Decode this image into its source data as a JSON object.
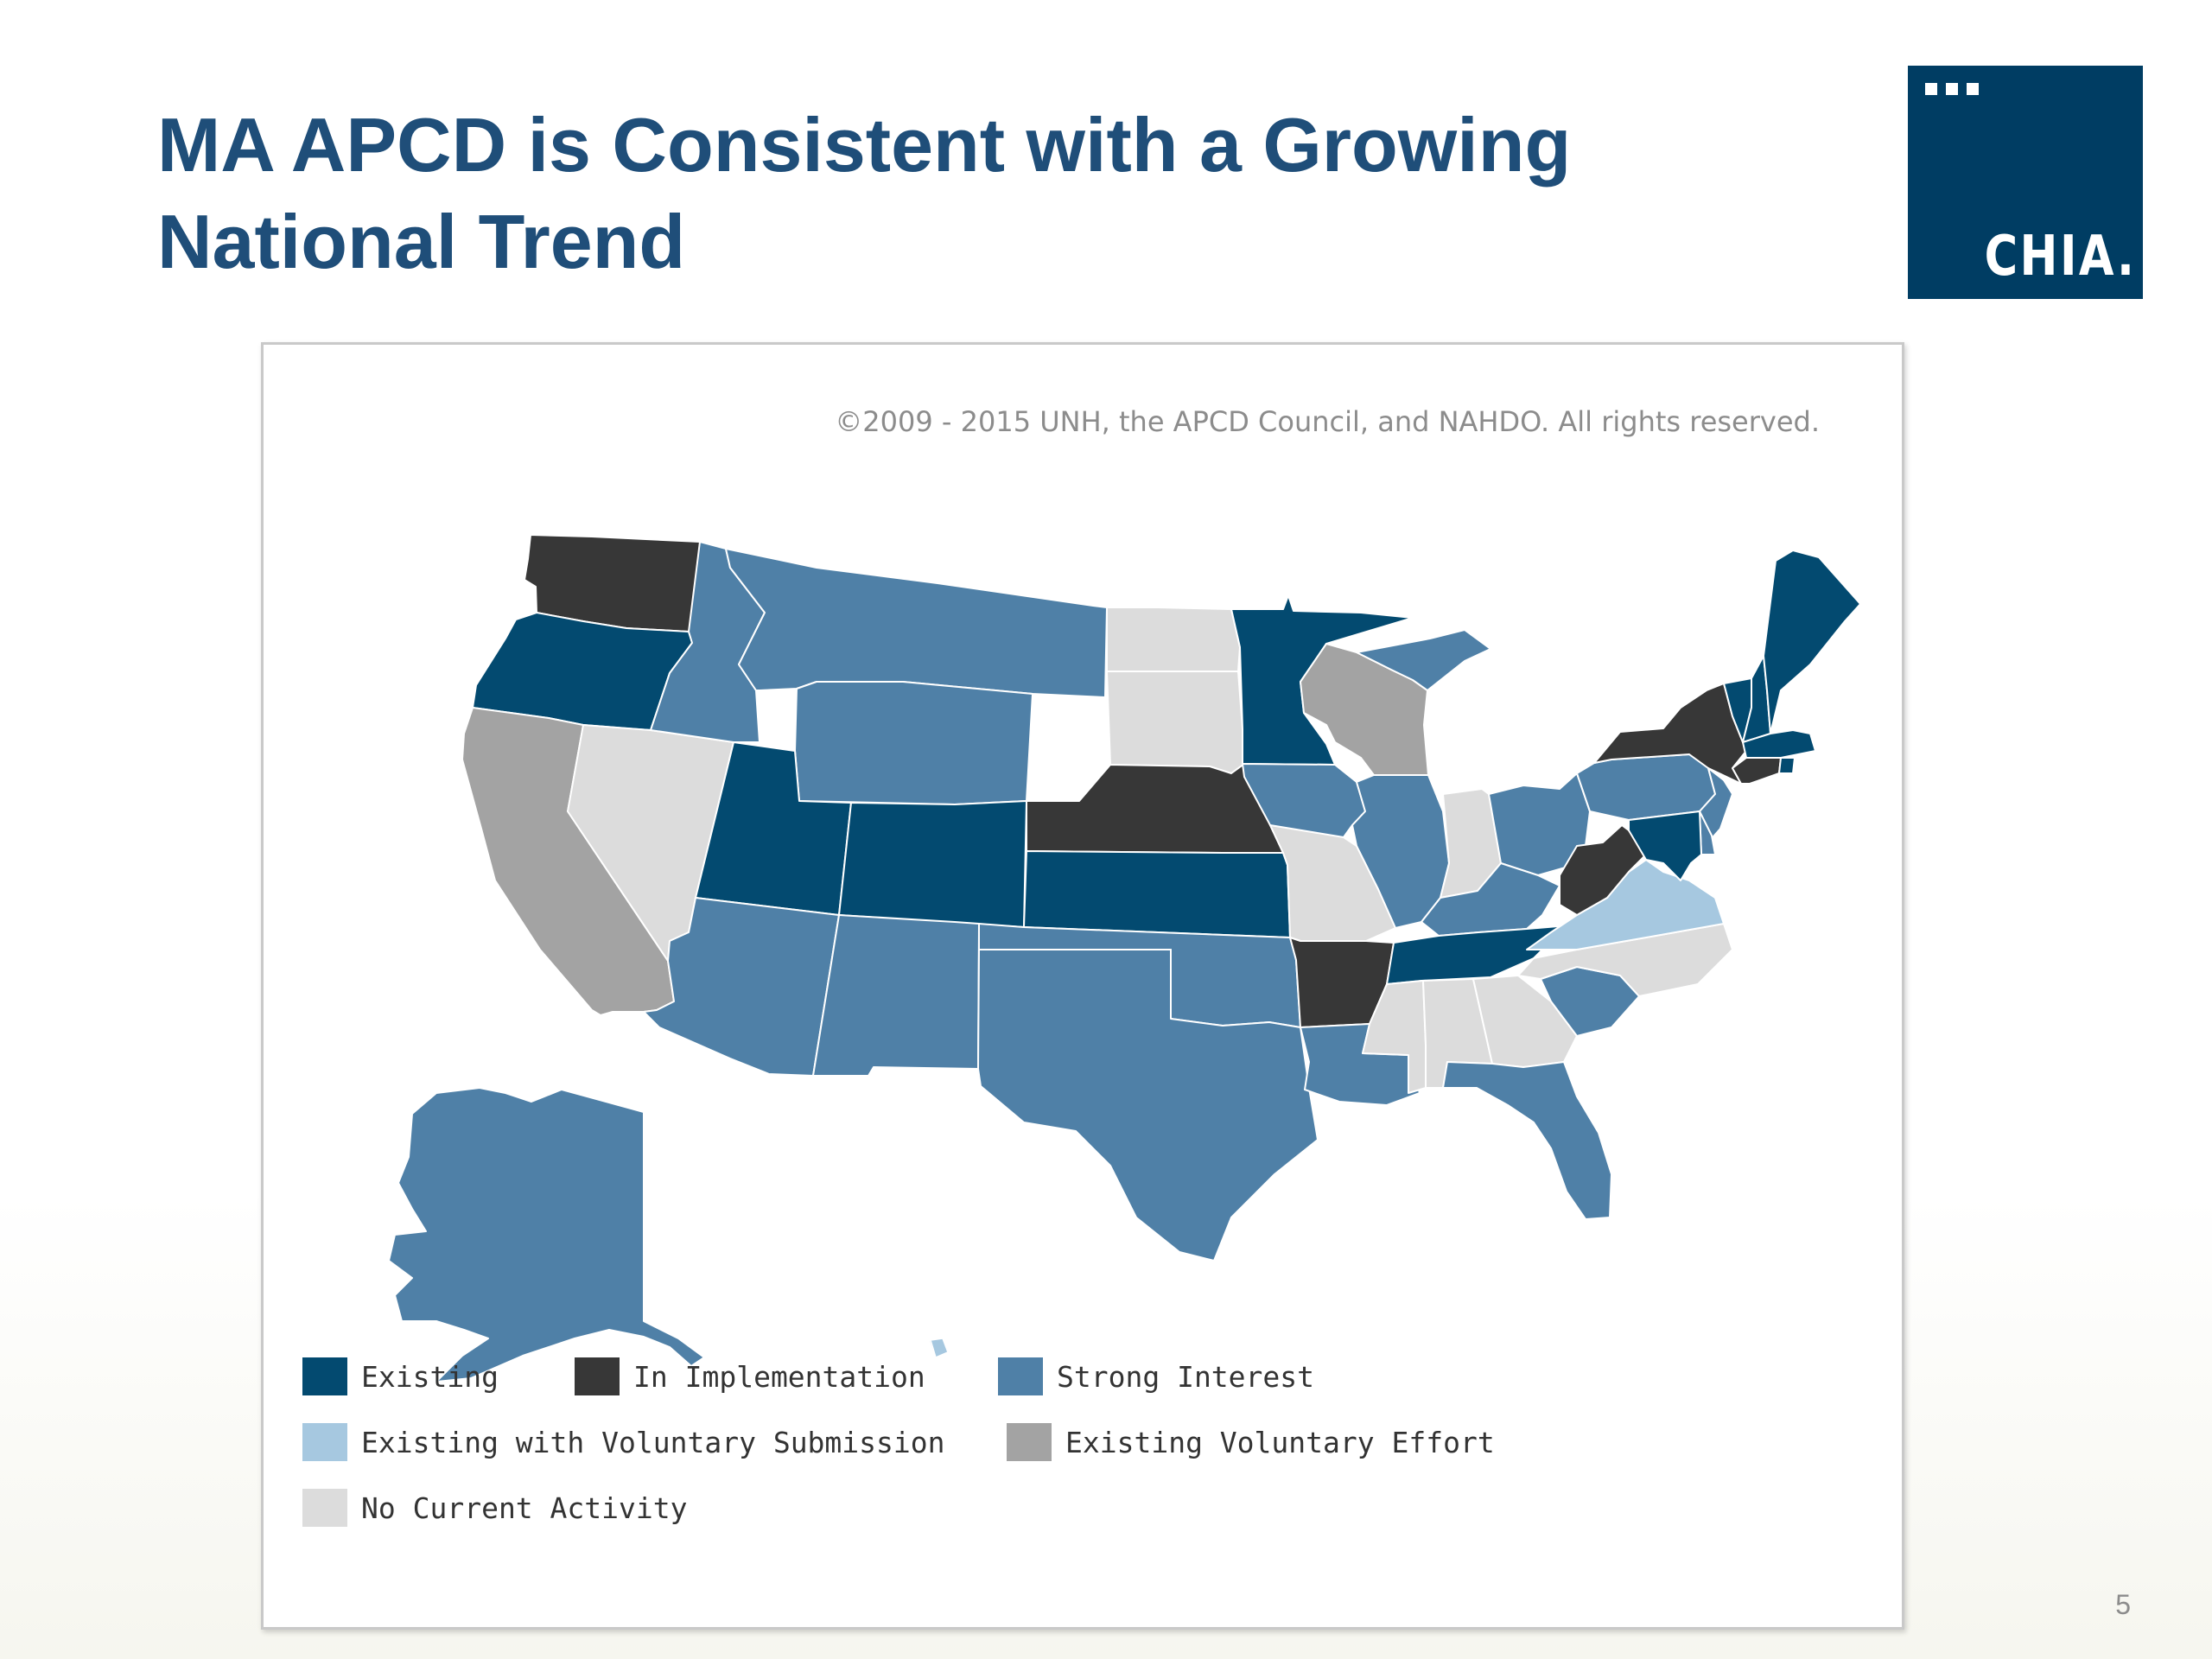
{
  "slide": {
    "title_line1": "MA APCD is Consistent with a Growing",
    "title_line2": "National Trend",
    "page_number": "5"
  },
  "logo": {
    "text": "CHIA."
  },
  "map": {
    "copyright": "©2009 - 2015 UNH, the APCD Council, and NAHDO. All rights reserved.",
    "legend": [
      {
        "key": "existing",
        "label": "Existing",
        "color": "#034a70"
      },
      {
        "key": "implementation",
        "label": "In Implementation",
        "color": "#373737"
      },
      {
        "key": "strong",
        "label": "Strong Interest",
        "color": "#4f80a7"
      },
      {
        "key": "voluntary_submission",
        "label": "Existing with Voluntary Submission",
        "color": "#a6c8e0"
      },
      {
        "key": "voluntary_effort",
        "label": "Existing Voluntary Effort",
        "color": "#a3a3a3"
      },
      {
        "key": "none",
        "label": "No Current Activity",
        "color": "#dcdcdc"
      }
    ],
    "states": {
      "existing": [
        "OR",
        "UT",
        "CO",
        "KS",
        "MN",
        "TN",
        "ME",
        "VT",
        "NH",
        "MA",
        "RI",
        "MD"
      ],
      "implementation": [
        "WA",
        "NE",
        "AR",
        "NY",
        "WV",
        "CT"
      ],
      "strong": [
        "ID",
        "MT",
        "WY",
        "AZ",
        "NM",
        "TX",
        "OK",
        "IA",
        "IL",
        "MI",
        "OH",
        "KY",
        "PA",
        "NJ",
        "DE",
        "SC",
        "FL",
        "LA",
        "AK"
      ],
      "voluntary_submission": [
        "VA",
        "HI"
      ],
      "voluntary_effort": [
        "CA",
        "WI"
      ],
      "none": [
        "NV",
        "ND",
        "SD",
        "MO",
        "IN",
        "NC",
        "GA",
        "AL",
        "MS"
      ]
    }
  }
}
